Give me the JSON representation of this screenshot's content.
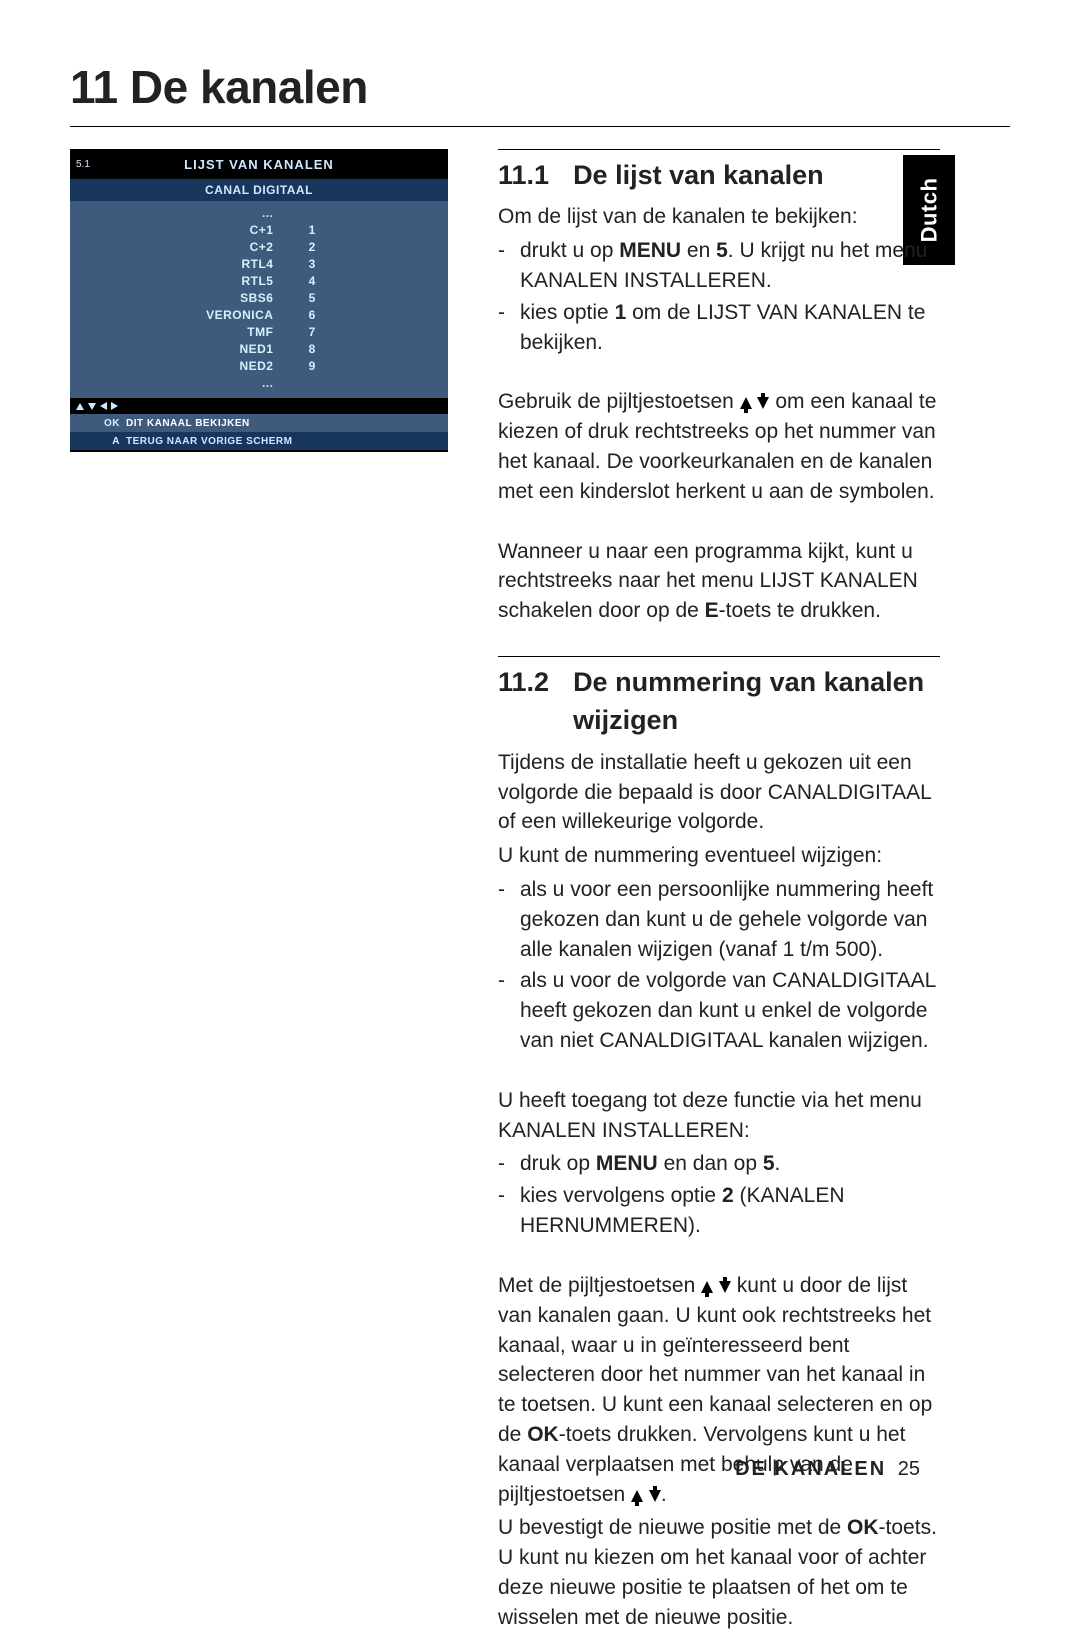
{
  "language_tab": "Dutch",
  "chapter": {
    "number": "11",
    "title": "De kanalen"
  },
  "tv": {
    "menu_code": "5.1",
    "title": "LIJST VAN KANALEN",
    "provider": "CANAL DIGITAAL",
    "ellipsis": "...",
    "channels": [
      {
        "name": "C+1",
        "num": "1"
      },
      {
        "name": "C+2",
        "num": "2"
      },
      {
        "name": "RTL4",
        "num": "3"
      },
      {
        "name": "RTL5",
        "num": "4"
      },
      {
        "name": "SBS6",
        "num": "5"
      },
      {
        "name": "VERONICA",
        "num": "6"
      },
      {
        "name": "TMF",
        "num": "7"
      },
      {
        "name": "NED1",
        "num": "8"
      },
      {
        "name": "NED2",
        "num": "9"
      }
    ],
    "hints": [
      {
        "key": "OK",
        "label": "DIT KANAAL BEKIJKEN",
        "variant": "light"
      },
      {
        "key": "A",
        "label": "TERUG NAAR VORIGE SCHERM",
        "variant": "dark"
      }
    ]
  },
  "sec11_1": {
    "num": "11.1",
    "title": "De lijst van kanalen",
    "intro": "Om de lijst van de kanalen te bekijken:",
    "b1_a": "drukt u op ",
    "b1_bold": "MENU",
    "b1_b": " en ",
    "b1_bold2": "5",
    "b1_c": ". U krijgt nu het menu KANALEN INSTALLEREN.",
    "b2_a": "kies optie ",
    "b2_bold": "1",
    "b2_b": " om de LIJST VAN KANALEN te bekijken.",
    "p2_a": "Gebruik de pijltjestoetsen ",
    "p2_b": " om een kanaal te kiezen of druk rechtstreeks op het nummer van het kanaal. De voorkeurkanalen en de kanalen met een kinderslot herkent u aan de symbolen.",
    "p3_a": "Wanneer u naar een programma kijkt, kunt u rechtstreeks naar het menu LIJST KANALEN schakelen door op de ",
    "p3_bold": "E",
    "p3_b": "-toets te drukken."
  },
  "sec11_2": {
    "num": "11.2",
    "title": "De nummering van kanalen wijzigen",
    "p1": "Tijdens de installatie heeft u gekozen uit een volgorde die bepaald is door CANALDIGITAAL of een willekeurige volgorde.",
    "p2": "U kunt de nummering eventueel wijzigen:",
    "b1": "als u voor een persoonlijke nummering heeft gekozen dan kunt u de gehele volgorde van alle kanalen wijzigen (vanaf 1 t/m 500).",
    "b2": "als u voor de volgorde van CANALDIGITAAL heeft gekozen dan kunt u enkel de volgorde van niet CANALDIGITAAL kanalen wijzigen.",
    "p3": "U heeft toegang tot deze functie via het menu KANALEN INSTALLEREN:",
    "b3_a": "druk op ",
    "b3_bold": "MENU",
    "b3_b": " en dan op ",
    "b3_bold2": "5",
    "b3_c": ".",
    "b4_a": "kies vervolgens optie ",
    "b4_bold": "2",
    "b4_b": " (KANALEN HERNUMMEREN).",
    "p4_a": "Met de pijltjestoetsen ",
    "p4_b": " kunt u door de lijst van kanalen gaan. U kunt ook rechtstreeks het kanaal, waar u in geïnteresseerd bent selecteren door het nummer van het kanaal in te toetsen. U kunt een kanaal selecteren en op de ",
    "p4_bold1": "OK",
    "p4_c": "-toets drukken. Vervolgens kunt u het kanaal verplaatsen met behulp van de pijltjestoetsen ",
    "p4_d": ".",
    "p5_a": "U bevestigt de nieuwe positie met de ",
    "p5_bold": "OK",
    "p5_b": "-toets. U kunt nu kiezen om het kanaal voor of achter deze nieuwe positie te plaatsen of  het om te wisselen met de nieuwe positie."
  },
  "footer": {
    "label": "De kanalen",
    "page": "25"
  }
}
